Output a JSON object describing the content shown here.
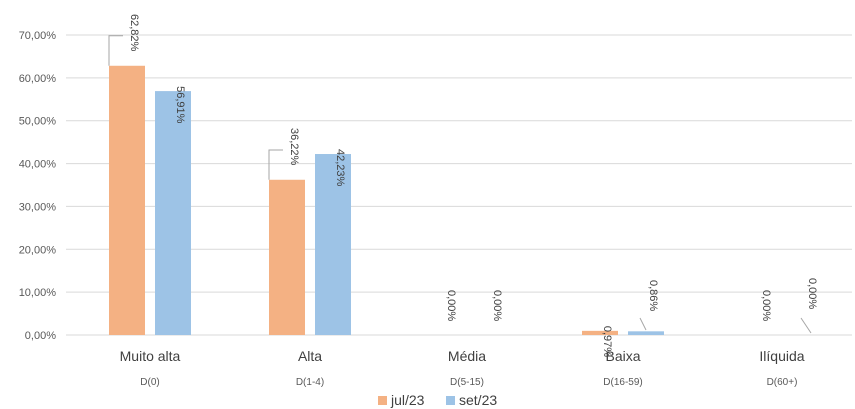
{
  "chart_data": {
    "type": "bar",
    "categories": [
      "Muito alta",
      "Alta",
      "Média",
      "Baixa",
      "Ilíquida"
    ],
    "subcategories": [
      "D(0)",
      "D(1-4)",
      "D(5-15)",
      "D(16-59)",
      "D(60+)"
    ],
    "series": [
      {
        "name": "jul/23",
        "color": "#F4B183",
        "values": [
          62.82,
          36.22,
          0.0,
          0.97,
          0.0
        ],
        "labels": [
          "62,82%",
          "36,22%",
          "0,00%",
          "0,97%",
          "0,00%"
        ]
      },
      {
        "name": "set/23",
        "color": "#9DC3E6",
        "values": [
          56.91,
          42.23,
          0.0,
          0.86,
          0.0
        ],
        "labels": [
          "56,91%",
          "42,23%",
          "0,00%",
          "0,86%",
          "0,00%"
        ]
      }
    ],
    "ylim": [
      0,
      70
    ],
    "yticks": [
      0,
      10,
      20,
      30,
      40,
      50,
      60,
      70
    ],
    "ytick_labels": [
      "0,00%",
      "10,00%",
      "20,00%",
      "30,00%",
      "40,00%",
      "50,00%",
      "60,00%",
      "70,00%"
    ],
    "grid": true,
    "legend_position": "bottom",
    "title": "",
    "xlabel": "",
    "ylabel": ""
  }
}
